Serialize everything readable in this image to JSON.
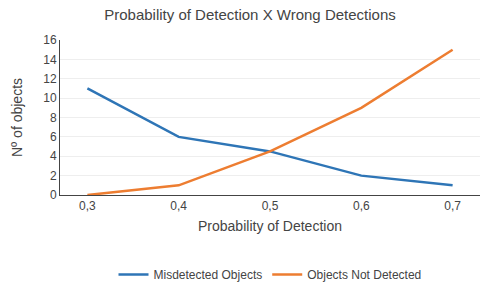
{
  "chart_data": {
    "type": "line",
    "title": "Probability of Detection X Wrong Detections",
    "xlabel": "Probability of Detection",
    "ylabel": "Nº of objects",
    "x": [
      0.3,
      0.4,
      0.5,
      0.6,
      0.7
    ],
    "series": [
      {
        "name": "Misdetected Objects",
        "color": "#2E75B6",
        "values": [
          11,
          6,
          4.5,
          2,
          1
        ]
      },
      {
        "name": "Objects Not Detected",
        "color": "#ED7D31",
        "values": [
          0,
          1,
          4.5,
          9,
          15
        ]
      }
    ],
    "xlim": [
      0.27,
      0.73
    ],
    "ylim": [
      0,
      16
    ],
    "xticks": [
      {
        "value": 0.3,
        "label": "0,3"
      },
      {
        "value": 0.4,
        "label": "0,4"
      },
      {
        "value": 0.5,
        "label": "0,5"
      },
      {
        "value": 0.6,
        "label": "0,6"
      },
      {
        "value": 0.7,
        "label": "0,7"
      }
    ],
    "yticks": [
      0,
      2,
      4,
      6,
      8,
      10,
      12,
      14,
      16
    ],
    "grid": true,
    "legend": "bottom"
  }
}
